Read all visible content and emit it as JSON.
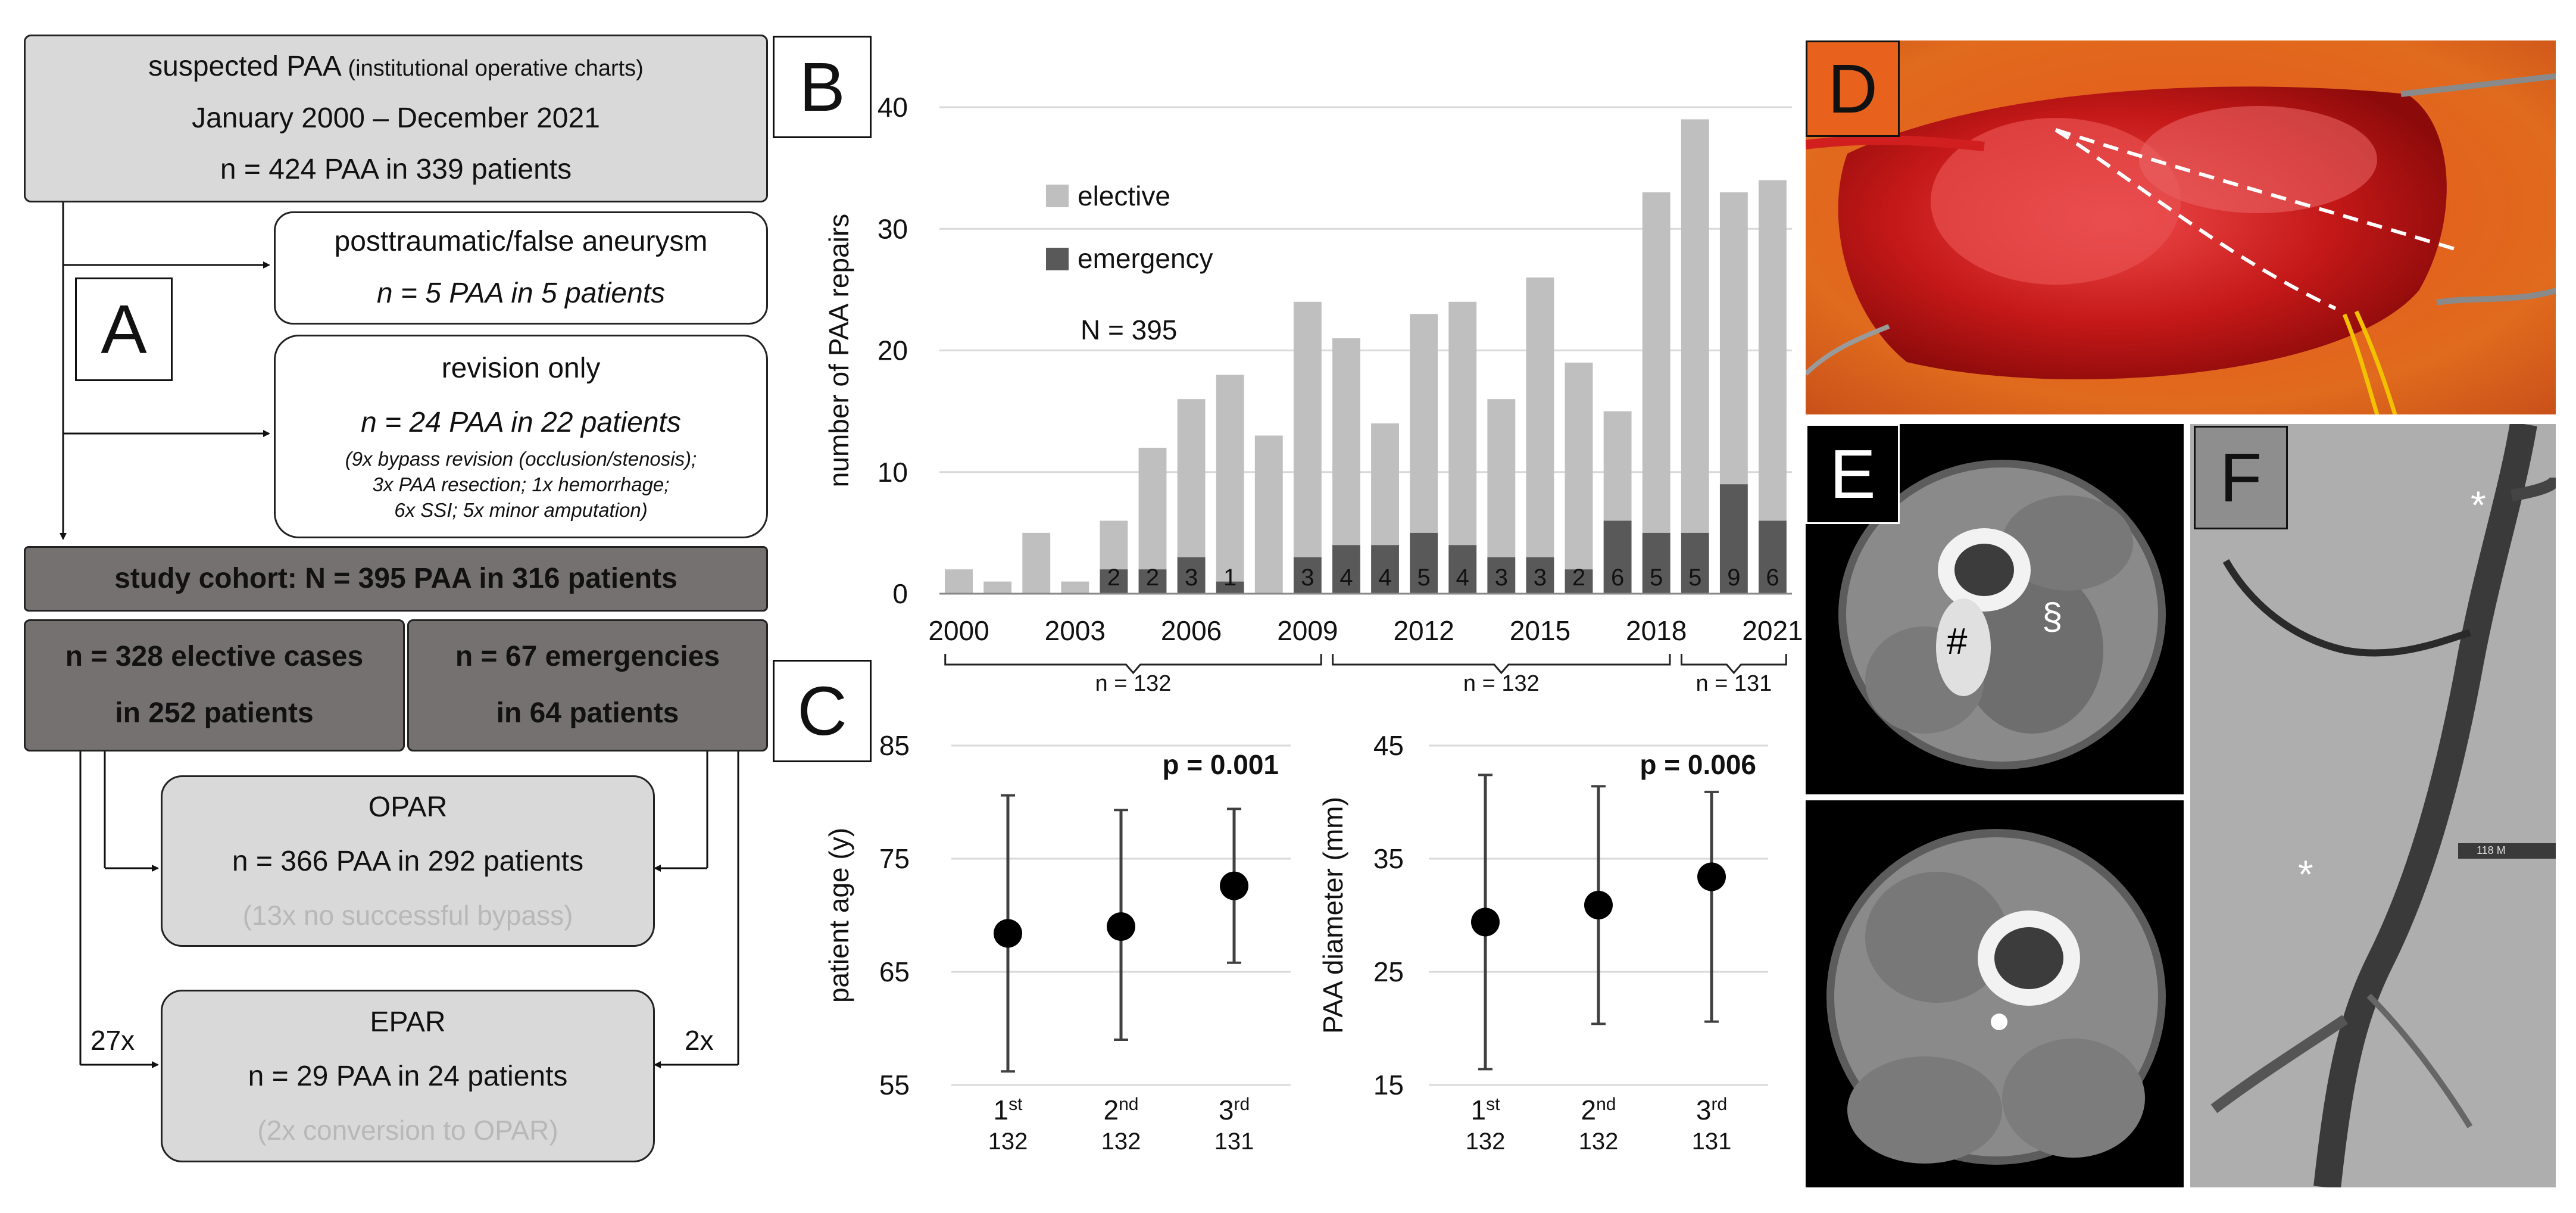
{
  "panel_labels": {
    "a": "A",
    "b": "B",
    "c": "C",
    "d": "D",
    "e": "E",
    "f": "F"
  },
  "flowchart": {
    "top": {
      "line1_main": "suspected PAA",
      "line1_note": "(institutional operative charts)",
      "line2": "January 2000 – December 2021",
      "line3": "n = 424 PAA in 339 patients"
    },
    "false_aneurysm": {
      "title": "posttraumatic/false aneurysm",
      "count": "n = 5 PAA in 5 patients"
    },
    "revision": {
      "title": "revision only",
      "count": "n = 24 PAA in 22 patients",
      "detail1": "(9x bypass revision (occlusion/stenosis);",
      "detail2": "3x PAA resection; 1x hemorrhage;",
      "detail3": "6x SSI; 5x minor amputation)"
    },
    "cohort": "study cohort: N = 395 PAA in 316 patients",
    "elective": {
      "line1": "n = 328 elective cases",
      "line2": "in 252 patients"
    },
    "emergency": {
      "line1": "n = 67 emergencies",
      "line2": "in 64 patients"
    },
    "opar": {
      "title": "OPAR",
      "count": "n = 366 PAA in 292 patients",
      "note": "(13x no successful bypass)"
    },
    "epar": {
      "title": "EPAR",
      "count": "n = 29 PAA in 24 patients",
      "note": "(2x conversion to OPAR)"
    },
    "edge_left": "27x",
    "edge_right": "2x"
  },
  "colors": {
    "elective": "#bfbfbf",
    "emergency": "#595959",
    "flow_light": "#d9d9d9",
    "flow_dark": "#767171",
    "grid": "#d9d9d9",
    "whisker": "#404040"
  },
  "chart_data": [
    {
      "type": "bar",
      "stacked": true,
      "ylabel": "number of PAA repairs",
      "ylim": [
        0,
        40
      ],
      "yticks": [
        0,
        10,
        20,
        30,
        40
      ],
      "grid": true,
      "legend_position": "top-left",
      "annotation": "N = 395",
      "categories": [
        "2000",
        "2001",
        "2002",
        "2003",
        "2004",
        "2005",
        "2006",
        "2007",
        "2008",
        "2009",
        "2010",
        "2011",
        "2012",
        "2013",
        "2014",
        "2015",
        "2016",
        "2017",
        "2018",
        "2019",
        "2020",
        "2021"
      ],
      "x_tick_labels": [
        "2000",
        "2003",
        "2006",
        "2009",
        "2012",
        "2015",
        "2018",
        "2021"
      ],
      "series": [
        {
          "name": "elective",
          "values": [
            2,
            1,
            5,
            1,
            4,
            10,
            13,
            17,
            13,
            21,
            17,
            10,
            18,
            20,
            13,
            23,
            17,
            9,
            28,
            34,
            24,
            28
          ]
        },
        {
          "name": "emergency",
          "values": [
            0,
            0,
            0,
            0,
            2,
            2,
            3,
            1,
            0,
            3,
            4,
            4,
            5,
            4,
            3,
            3,
            2,
            6,
            5,
            5,
            9,
            6
          ]
        }
      ],
      "period_labels": [
        "n = 132",
        "n = 132",
        "n = 131"
      ]
    },
    {
      "type": "scatter",
      "ylabel": "patient age (y)",
      "ylim": [
        55,
        85
      ],
      "yticks": [
        55,
        65,
        75,
        85
      ],
      "pvalue": "p = 0.001",
      "categories": [
        {
          "num": "1",
          "sup": "st",
          "n": "132"
        },
        {
          "num": "2",
          "sup": "nd",
          "n": "132"
        },
        {
          "num": "3",
          "sup": "rd",
          "n": "131"
        }
      ],
      "values": [
        68.4,
        69,
        72.6
      ],
      "lower": [
        56.2,
        59,
        65.8
      ],
      "upper": [
        80.6,
        79.3,
        79.4
      ]
    },
    {
      "type": "scatter",
      "ylabel": "PAA diameter (mm)",
      "ylim": [
        15,
        45
      ],
      "yticks": [
        15,
        25,
        35,
        45
      ],
      "pvalue": "p = 0.006",
      "categories": [
        {
          "num": "1",
          "sup": "st",
          "n": "132"
        },
        {
          "num": "2",
          "sup": "nd",
          "n": "132"
        },
        {
          "num": "3",
          "sup": "rd",
          "n": "131"
        }
      ],
      "values": [
        29.4,
        30.9,
        33.4
      ],
      "lower": [
        16.4,
        20.4,
        20.6
      ],
      "upper": [
        42.4,
        41.4,
        40.9
      ]
    }
  ],
  "images": {
    "e_marker_hash": "#",
    "e_marker_section": "§",
    "f_marker_star": "*",
    "f_scale_label": "118 M"
  }
}
